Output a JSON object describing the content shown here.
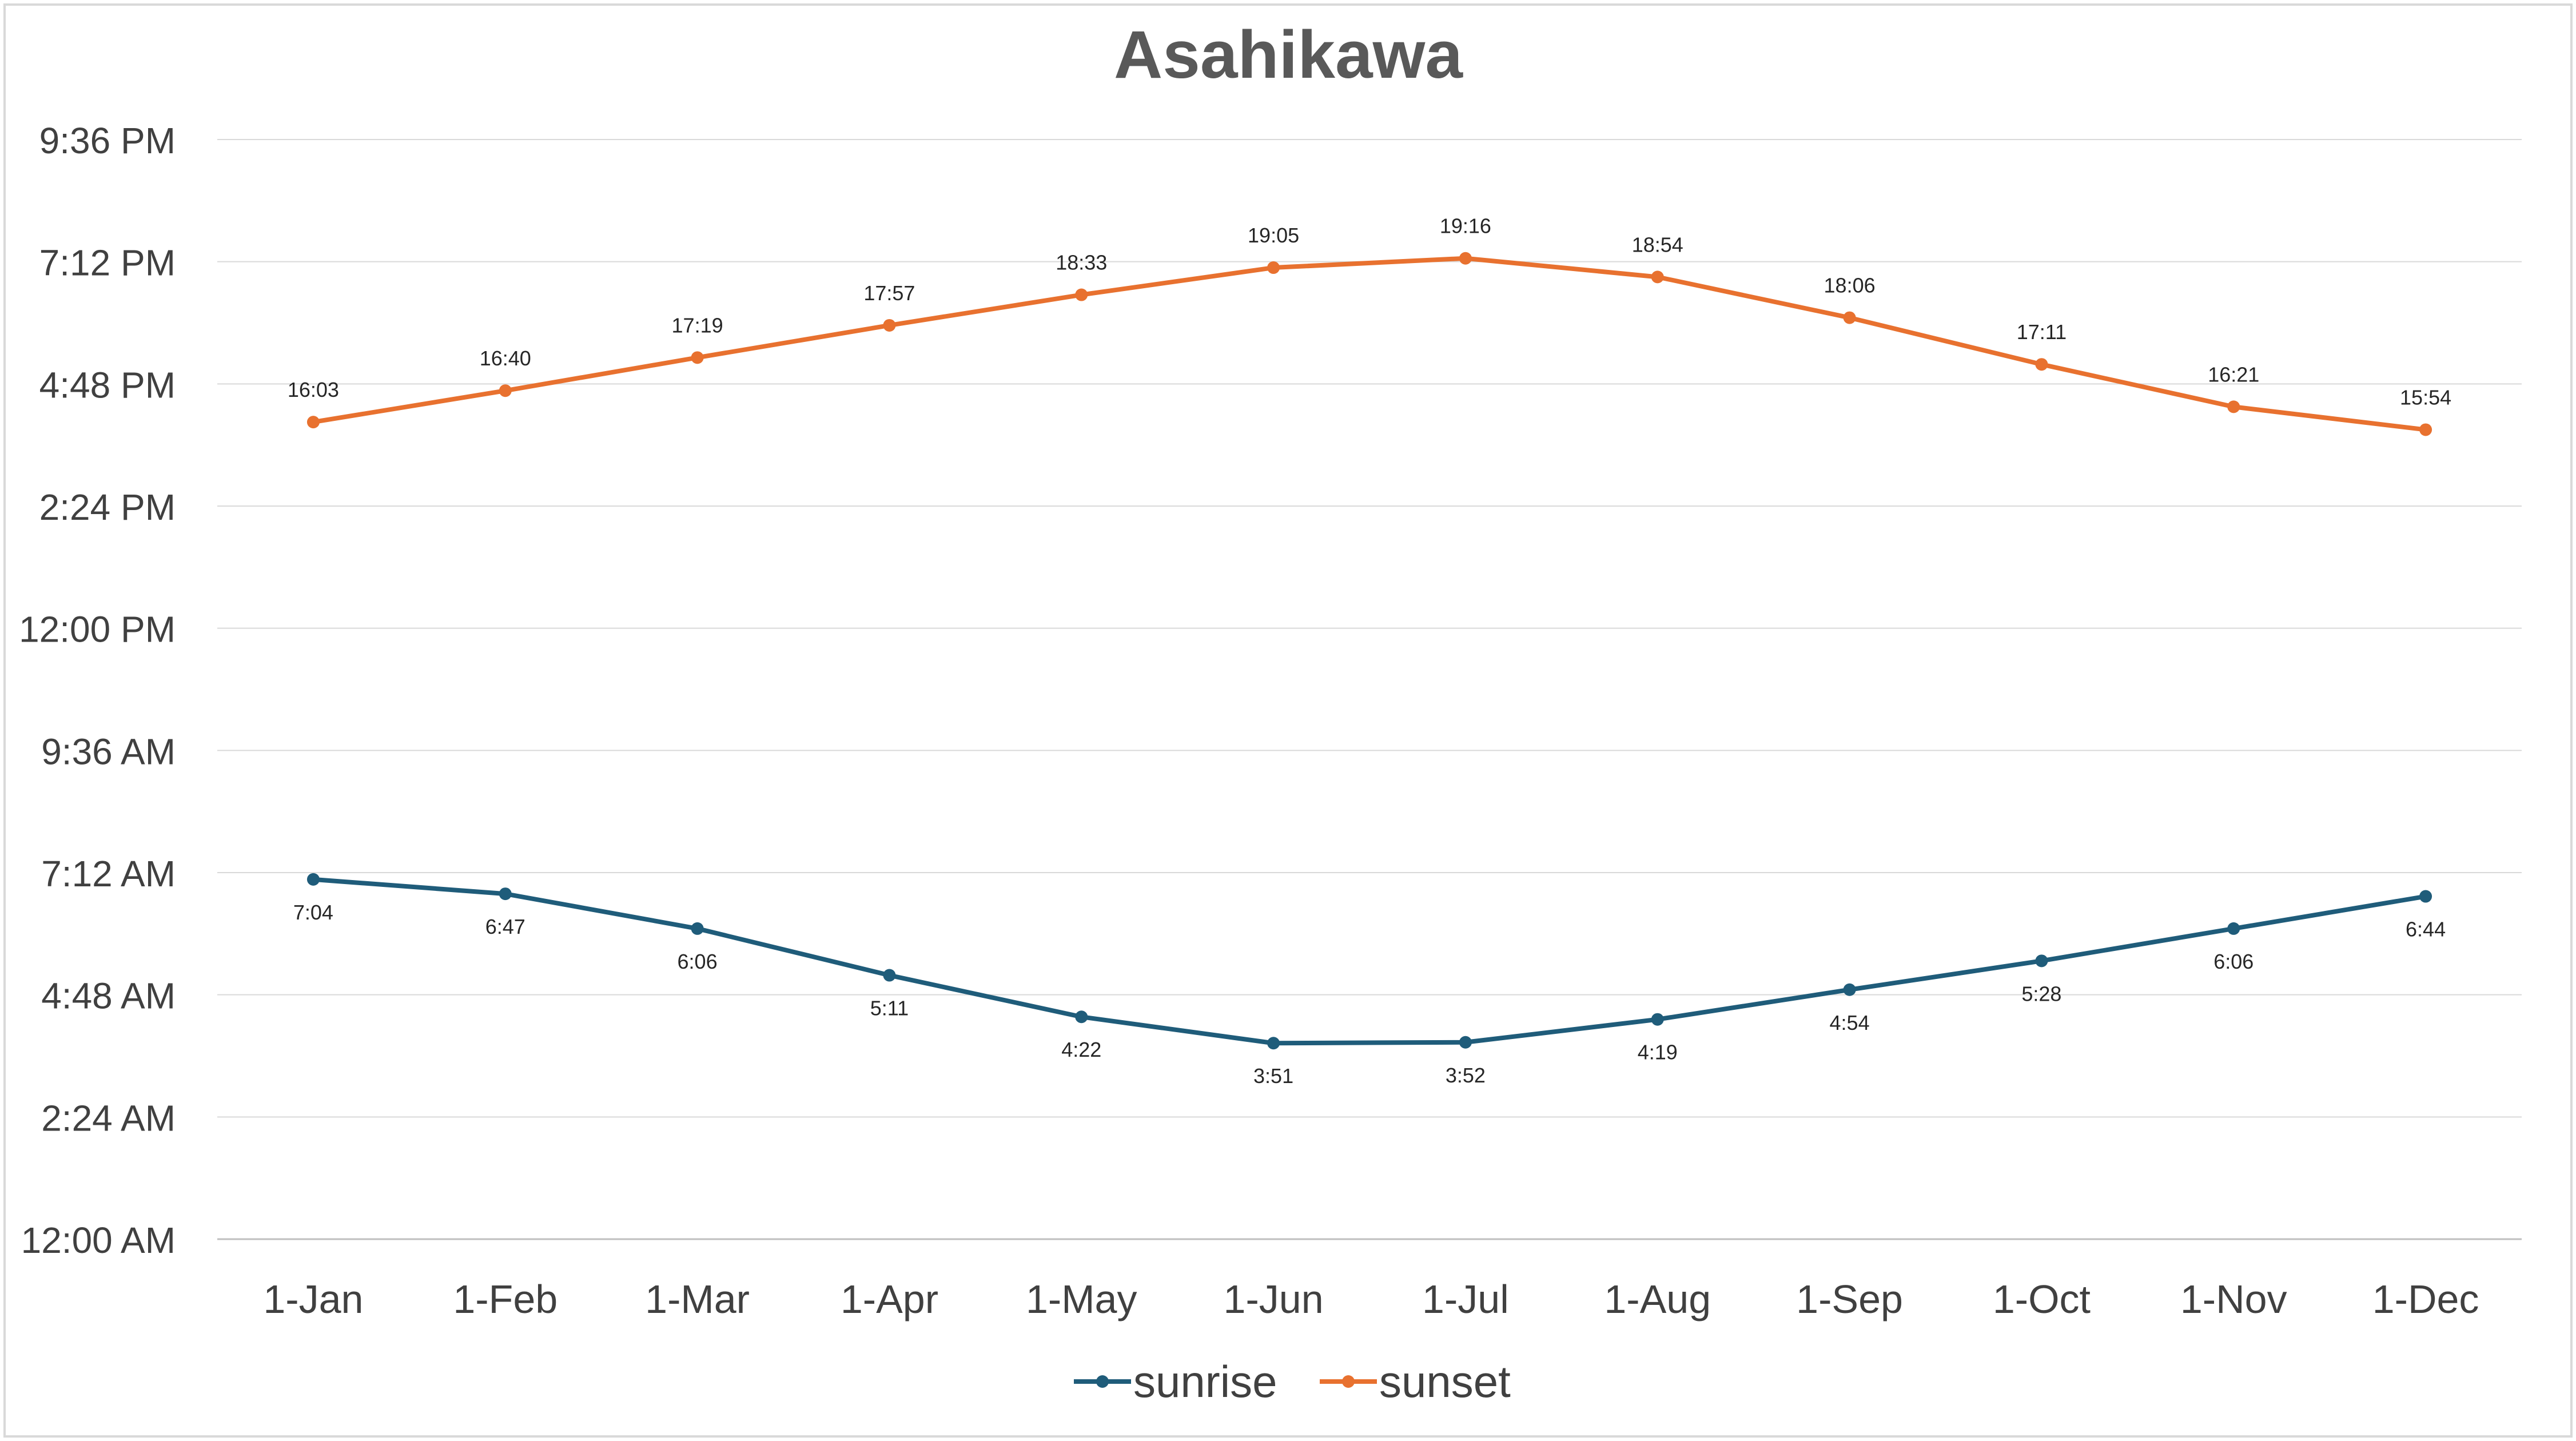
{
  "chart_data": {
    "type": "line",
    "title": "Asahikawa",
    "xlabel": "",
    "ylabel": "",
    "categories": [
      "1-Jan",
      "1-Feb",
      "1-Mar",
      "1-Apr",
      "1-May",
      "1-Jun",
      "1-Jul",
      "1-Aug",
      "1-Sep",
      "1-Oct",
      "1-Nov",
      "1-Dec"
    ],
    "y_axis": {
      "unit": "time of day",
      "min": "00:00",
      "max": "21:36",
      "ticks": [
        "12:00 AM",
        "2:24 AM",
        "4:48 AM",
        "7:12 AM",
        "9:36 AM",
        "12:00 PM",
        "2:24 PM",
        "4:48 PM",
        "7:12 PM",
        "9:36 PM"
      ]
    },
    "grid": true,
    "legend": {
      "position": "bottom"
    },
    "series": [
      {
        "name": "sunrise",
        "color": "#1f5c7a",
        "values": [
          "7:04",
          "6:47",
          "6:06",
          "5:11",
          "4:22",
          "3:51",
          "3:52",
          "4:19",
          "4:54",
          "5:28",
          "6:06",
          "6:44"
        ],
        "label_position": "below"
      },
      {
        "name": "sunset",
        "color": "#e8712f",
        "values": [
          "16:03",
          "16:40",
          "17:19",
          "17:57",
          "18:33",
          "19:05",
          "19:16",
          "18:54",
          "18:06",
          "17:11",
          "16:21",
          "15:54"
        ],
        "label_position": "above"
      }
    ]
  }
}
